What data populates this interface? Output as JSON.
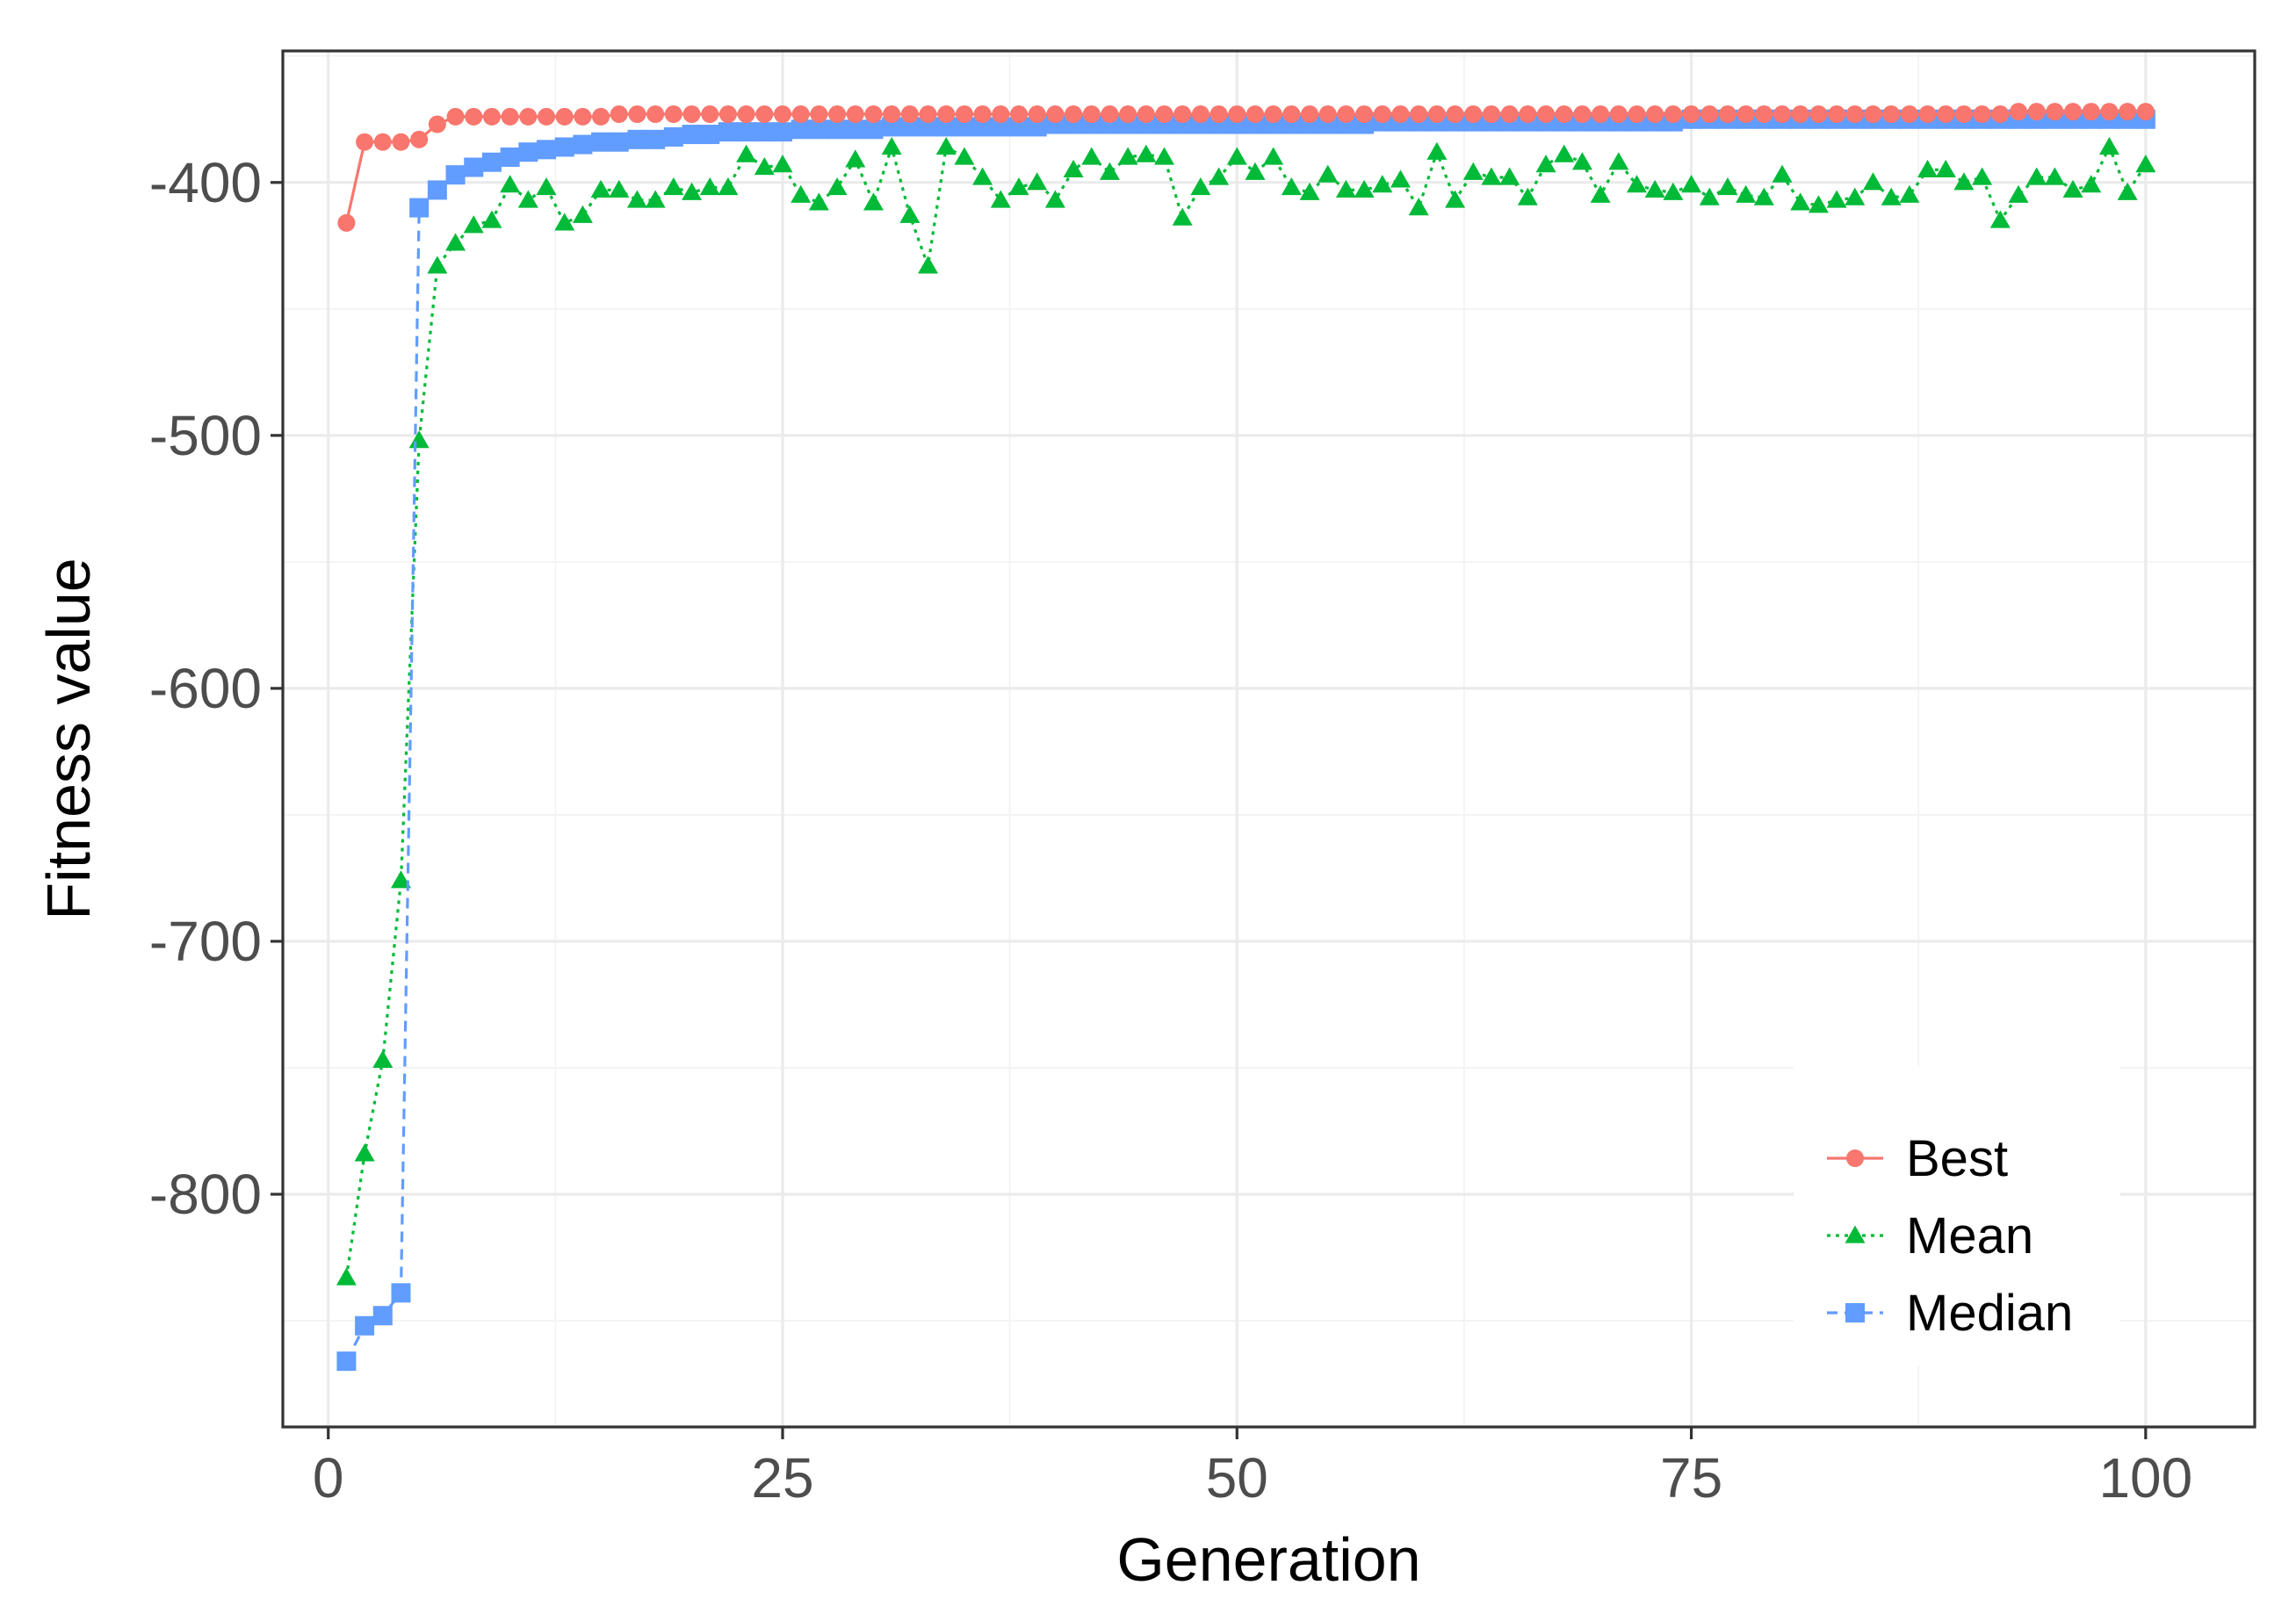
{
  "chart_data": {
    "type": "line",
    "title": "",
    "xlabel": "Generation",
    "ylabel": "Fitness value",
    "xlim": [
      -2.5,
      106
    ],
    "ylim": [
      -892,
      -348
    ],
    "x_ticks": [
      0,
      25,
      50,
      75,
      100
    ],
    "x_tick_labels": [
      "0",
      "25",
      "50",
      "75",
      "100"
    ],
    "y_ticks": [
      -400,
      -500,
      -600,
      -700,
      -800
    ],
    "y_tick_labels": [
      "-400",
      "-500",
      "-600",
      "-700",
      "-800"
    ],
    "grid": true,
    "legend_position": "bottom-right",
    "x": [
      1,
      2,
      3,
      4,
      5,
      6,
      7,
      8,
      9,
      10,
      11,
      12,
      13,
      14,
      15,
      16,
      17,
      18,
      19,
      20,
      21,
      22,
      23,
      24,
      25,
      26,
      27,
      28,
      29,
      30,
      31,
      32,
      33,
      34,
      35,
      36,
      37,
      38,
      39,
      40,
      41,
      42,
      43,
      44,
      45,
      46,
      47,
      48,
      49,
      50,
      51,
      52,
      53,
      54,
      55,
      56,
      57,
      58,
      59,
      60,
      61,
      62,
      63,
      64,
      65,
      66,
      67,
      68,
      69,
      70,
      71,
      72,
      73,
      74,
      75,
      76,
      77,
      78,
      79,
      80,
      81,
      82,
      83,
      84,
      85,
      86,
      87,
      88,
      89,
      90,
      91,
      92,
      93,
      94,
      95,
      96,
      97,
      98,
      99,
      100
    ],
    "series": [
      {
        "name": "Best",
        "color": "#F8766D",
        "line": "solid",
        "marker": "circle",
        "values": [
          -416,
          -384,
          -384,
          -384,
          -383,
          -377,
          -374,
          -374,
          -374,
          -374,
          -374,
          -374,
          -374,
          -374,
          -374,
          -373,
          -373,
          -373,
          -373,
          -373,
          -373,
          -373,
          -373,
          -373,
          -373,
          -373,
          -373,
          -373,
          -373,
          -373,
          -373,
          -373,
          -373,
          -373,
          -373,
          -373,
          -373,
          -373,
          -373,
          -373,
          -373,
          -373,
          -373,
          -373,
          -373,
          -373,
          -373,
          -373,
          -373,
          -373,
          -373,
          -373,
          -373,
          -373,
          -373,
          -373,
          -373,
          -373,
          -373,
          -373,
          -373,
          -373,
          -373,
          -373,
          -373,
          -373,
          -373,
          -373,
          -373,
          -373,
          -373,
          -373,
          -373,
          -373,
          -373,
          -373,
          -373,
          -373,
          -373,
          -373,
          -373,
          -373,
          -373,
          -373,
          -373,
          -373,
          -373,
          -373,
          -373,
          -373,
          -373,
          -373,
          -372,
          -372,
          -372,
          -372,
          -372,
          -372,
          -372,
          -372
        ]
      },
      {
        "name": "Mean",
        "color": "#00BA38",
        "line": "dotted",
        "marker": "triangle",
        "values": [
          -833,
          -784,
          -747,
          -676,
          -502,
          -433,
          -424,
          -417,
          -415,
          -401,
          -407,
          -402,
          -416,
          -413,
          -403,
          -403,
          -407,
          -407,
          -402,
          -404,
          -402,
          -402,
          -389,
          -394,
          -393,
          -405,
          -408,
          -402,
          -391,
          -408,
          -386,
          -413,
          -433,
          -386,
          -390,
          -398,
          -407,
          -402,
          -400,
          -407,
          -395,
          -390,
          -396,
          -390,
          -389,
          -390,
          -414,
          -402,
          -398,
          -390,
          -396,
          -390,
          -402,
          -404,
          -397,
          -403,
          -403,
          -401,
          -399,
          -410,
          -388,
          -407,
          -396,
          -398,
          -398,
          -406,
          -393,
          -389,
          -392,
          -405,
          -392,
          -401,
          -403,
          -404,
          -401,
          -406,
          -402,
          -405,
          -406,
          -397,
          -408,
          -409,
          -407,
          -406,
          -400,
          -406,
          -405,
          -395,
          -395,
          -400,
          -398,
          -415,
          -405,
          -398,
          -398,
          -403,
          -401,
          -386,
          -404,
          -393
        ]
      },
      {
        "name": "Median",
        "color": "#619CFF",
        "line": "dashed",
        "marker": "square",
        "values": [
          -866,
          -852,
          -848,
          -839,
          -410,
          -403,
          -397,
          -394,
          -392,
          -390,
          -388,
          -387,
          -386,
          -385,
          -384,
          -384,
          -383,
          -383,
          -382,
          -381,
          -381,
          -380,
          -380,
          -380,
          -380,
          -379,
          -379,
          -379,
          -379,
          -379,
          -378,
          -378,
          -378,
          -378,
          -378,
          -378,
          -378,
          -378,
          -378,
          -377,
          -377,
          -377,
          -377,
          -377,
          -377,
          -377,
          -377,
          -377,
          -377,
          -377,
          -377,
          -377,
          -377,
          -377,
          -377,
          -377,
          -377,
          -376,
          -376,
          -376,
          -376,
          -376,
          -376,
          -376,
          -376,
          -376,
          -376,
          -376,
          -376,
          -376,
          -376,
          -376,
          -376,
          -376,
          -375,
          -375,
          -375,
          -375,
          -375,
          -375,
          -375,
          -375,
          -375,
          -375,
          -375,
          -375,
          -375,
          -375,
          -375,
          -375,
          -375,
          -375,
          -375,
          -375,
          -375,
          -375,
          -375,
          -375,
          -375,
          -375
        ]
      }
    ]
  }
}
